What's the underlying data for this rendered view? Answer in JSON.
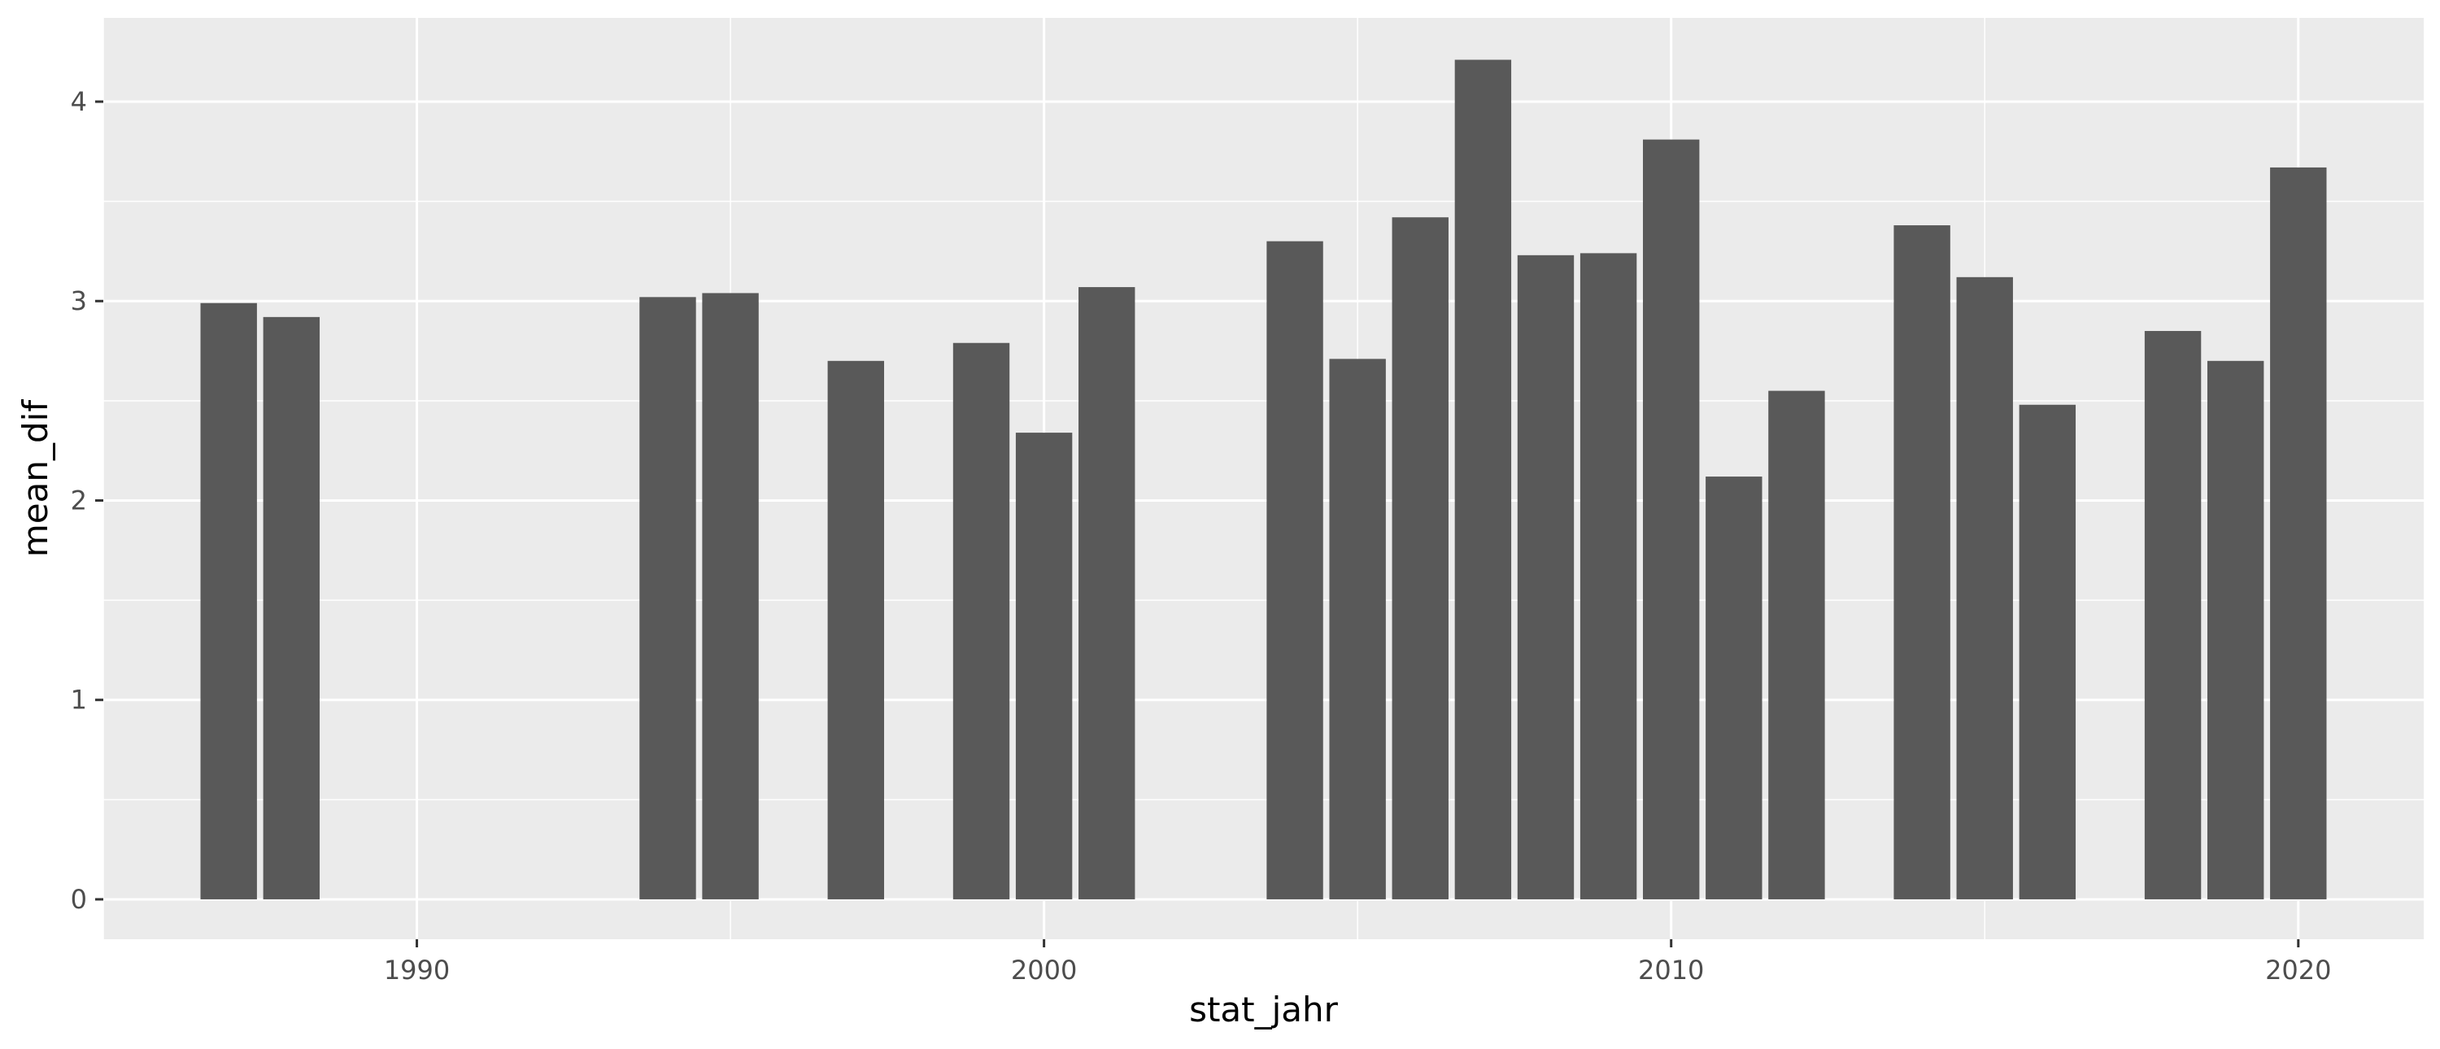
{
  "chart_data": {
    "type": "bar",
    "xlabel": "stat_jahr",
    "ylabel": "mean_dif",
    "xlim": [
      1985,
      2022
    ],
    "ylim": [
      -0.2,
      4.42
    ],
    "x_ticks": [
      1990,
      2000,
      2010,
      2020
    ],
    "y_ticks": [
      0,
      1,
      2,
      3,
      4
    ],
    "grid": true,
    "legend": "none",
    "x": [
      1987,
      1988,
      1994,
      1995,
      1997,
      1999,
      2000,
      2001,
      2004,
      2005,
      2006,
      2007,
      2008,
      2009,
      2010,
      2011,
      2012,
      2014,
      2015,
      2016,
      2018,
      2019,
      2020
    ],
    "values": [
      2.99,
      2.92,
      3.02,
      3.04,
      2.7,
      2.79,
      2.34,
      3.07,
      3.3,
      2.71,
      3.42,
      4.21,
      3.23,
      3.24,
      3.81,
      2.12,
      2.55,
      3.38,
      3.12,
      2.48,
      2.85,
      2.7,
      3.67
    ],
    "colors": {
      "panel": "#ebebeb",
      "grid": "#ffffff",
      "bar": "#595959",
      "tick": "#333333"
    }
  }
}
